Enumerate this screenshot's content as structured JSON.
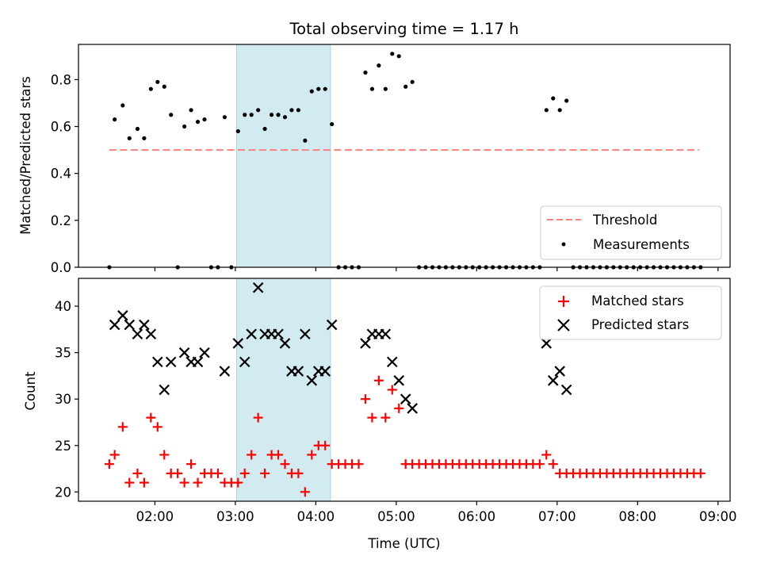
{
  "chart_data": [
    {
      "type": "scatter",
      "title": "Total observing time = 1.17 h",
      "xlabel": "",
      "ylabel": "Matched/Predicted stars",
      "ylim": [
        0,
        0.95
      ],
      "yticks": [
        "0.0",
        "0.2",
        "0.4",
        "0.6",
        "0.8"
      ],
      "shaded_span": {
        "start": "03:01",
        "end": "04:11",
        "color": "#a6d7e3"
      },
      "legend": {
        "placement": "lower-right"
      },
      "threshold": {
        "name": "Threshold",
        "y": 0.5,
        "x_start": "01:26",
        "x_end": "08:46",
        "color": "#ff7f7f"
      },
      "measurements": {
        "name": "Measurements",
        "color": "#000000",
        "points": [
          [
            "01:26",
            0.0
          ],
          [
            "01:30",
            0.63
          ],
          [
            "01:36",
            0.69
          ],
          [
            "01:41",
            0.55
          ],
          [
            "01:47",
            0.59
          ],
          [
            "01:52",
            0.55
          ],
          [
            "01:57",
            0.76
          ],
          [
            "02:02",
            0.79
          ],
          [
            "02:07",
            0.77
          ],
          [
            "02:12",
            0.65
          ],
          [
            "02:17",
            0.0
          ],
          [
            "02:22",
            0.6
          ],
          [
            "02:27",
            0.67
          ],
          [
            "02:32",
            0.62
          ],
          [
            "02:37",
            0.63
          ],
          [
            "02:42",
            0.0
          ],
          [
            "02:47",
            0.0
          ],
          [
            "02:52",
            0.64
          ],
          [
            "02:57",
            0.0
          ],
          [
            "03:02",
            0.58
          ],
          [
            "03:07",
            0.65
          ],
          [
            "03:12",
            0.65
          ],
          [
            "03:17",
            0.67
          ],
          [
            "03:22",
            0.59
          ],
          [
            "03:27",
            0.65
          ],
          [
            "03:32",
            0.65
          ],
          [
            "03:37",
            0.64
          ],
          [
            "03:42",
            0.67
          ],
          [
            "03:47",
            0.67
          ],
          [
            "03:52",
            0.54
          ],
          [
            "03:57",
            0.75
          ],
          [
            "04:02",
            0.76
          ],
          [
            "04:07",
            0.76
          ],
          [
            "04:12",
            0.61
          ],
          [
            "04:17",
            0.0
          ],
          [
            "04:22",
            0.0
          ],
          [
            "04:27",
            0.0
          ],
          [
            "04:32",
            0.0
          ],
          [
            "04:37",
            0.83
          ],
          [
            "04:42",
            0.76
          ],
          [
            "04:47",
            0.86
          ],
          [
            "04:52",
            0.76
          ],
          [
            "04:57",
            0.91
          ],
          [
            "05:02",
            0.9
          ],
          [
            "05:07",
            0.77
          ],
          [
            "05:12",
            0.79
          ],
          [
            "05:17",
            0.0
          ],
          [
            "05:22",
            0.0
          ],
          [
            "05:27",
            0.0
          ],
          [
            "05:32",
            0.0
          ],
          [
            "05:37",
            0.0
          ],
          [
            "05:42",
            0.0
          ],
          [
            "05:47",
            0.0
          ],
          [
            "05:52",
            0.0
          ],
          [
            "05:57",
            0.0
          ],
          [
            "06:02",
            0.0
          ],
          [
            "06:07",
            0.0
          ],
          [
            "06:12",
            0.0
          ],
          [
            "06:17",
            0.0
          ],
          [
            "06:22",
            0.0
          ],
          [
            "06:27",
            0.0
          ],
          [
            "06:32",
            0.0
          ],
          [
            "06:37",
            0.0
          ],
          [
            "06:42",
            0.0
          ],
          [
            "06:47",
            0.0
          ],
          [
            "06:52",
            0.67
          ],
          [
            "06:57",
            0.72
          ],
          [
            "07:02",
            0.67
          ],
          [
            "07:07",
            0.71
          ],
          [
            "07:12",
            0.0
          ],
          [
            "07:17",
            0.0
          ],
          [
            "07:22",
            0.0
          ],
          [
            "07:27",
            0.0
          ],
          [
            "07:32",
            0.0
          ],
          [
            "07:37",
            0.0
          ],
          [
            "07:42",
            0.0
          ],
          [
            "07:47",
            0.0
          ],
          [
            "07:52",
            0.0
          ],
          [
            "07:57",
            0.0
          ],
          [
            "08:02",
            0.0
          ],
          [
            "08:07",
            0.0
          ],
          [
            "08:12",
            0.0
          ],
          [
            "08:17",
            0.0
          ],
          [
            "08:22",
            0.0
          ],
          [
            "08:27",
            0.0
          ],
          [
            "08:32",
            0.0
          ],
          [
            "08:37",
            0.0
          ],
          [
            "08:42",
            0.0
          ],
          [
            "08:47",
            0.0
          ]
        ]
      }
    },
    {
      "type": "scatter",
      "title": "",
      "xlabel": "Time (UTC)",
      "ylabel": "Count",
      "ylim": [
        19,
        43
      ],
      "yticks": [
        "20",
        "25",
        "30",
        "35",
        "40"
      ],
      "xticks": [
        "02:00",
        "03:00",
        "04:00",
        "05:00",
        "06:00",
        "07:00",
        "08:00",
        "09:00"
      ],
      "xlim": [
        "01:03",
        "09:09"
      ],
      "shaded_span": {
        "start": "03:01",
        "end": "04:11",
        "color": "#a6d7e3"
      },
      "legend": {
        "placement": "top-right"
      },
      "series": [
        {
          "name": "Matched stars",
          "marker": "+",
          "color": "#ff0000",
          "points": [
            [
              "01:26",
              23
            ],
            [
              "01:30",
              24
            ],
            [
              "01:36",
              27
            ],
            [
              "01:41",
              21
            ],
            [
              "01:47",
              22
            ],
            [
              "01:52",
              21
            ],
            [
              "01:57",
              28
            ],
            [
              "02:02",
              27
            ],
            [
              "02:07",
              24
            ],
            [
              "02:12",
              22
            ],
            [
              "02:17",
              22
            ],
            [
              "02:22",
              21
            ],
            [
              "02:27",
              23
            ],
            [
              "02:32",
              21
            ],
            [
              "02:37",
              22
            ],
            [
              "02:42",
              22
            ],
            [
              "02:47",
              22
            ],
            [
              "02:52",
              21
            ],
            [
              "02:57",
              21
            ],
            [
              "03:02",
              21
            ],
            [
              "03:07",
              22
            ],
            [
              "03:12",
              24
            ],
            [
              "03:17",
              28
            ],
            [
              "03:22",
              22
            ],
            [
              "03:27",
              24
            ],
            [
              "03:32",
              24
            ],
            [
              "03:37",
              23
            ],
            [
              "03:42",
              22
            ],
            [
              "03:47",
              22
            ],
            [
              "03:52",
              20
            ],
            [
              "03:57",
              24
            ],
            [
              "04:02",
              25
            ],
            [
              "04:07",
              25
            ],
            [
              "04:12",
              23
            ],
            [
              "04:17",
              23
            ],
            [
              "04:22",
              23
            ],
            [
              "04:27",
              23
            ],
            [
              "04:32",
              23
            ],
            [
              "04:37",
              30
            ],
            [
              "04:42",
              28
            ],
            [
              "04:47",
              32
            ],
            [
              "04:52",
              28
            ],
            [
              "04:57",
              31
            ],
            [
              "05:02",
              29
            ],
            [
              "05:07",
              23
            ],
            [
              "05:12",
              23
            ],
            [
              "05:17",
              23
            ],
            [
              "05:22",
              23
            ],
            [
              "05:27",
              23
            ],
            [
              "05:32",
              23
            ],
            [
              "05:37",
              23
            ],
            [
              "05:42",
              23
            ],
            [
              "05:47",
              23
            ],
            [
              "05:52",
              23
            ],
            [
              "05:57",
              23
            ],
            [
              "06:02",
              23
            ],
            [
              "06:07",
              23
            ],
            [
              "06:12",
              23
            ],
            [
              "06:17",
              23
            ],
            [
              "06:22",
              23
            ],
            [
              "06:27",
              23
            ],
            [
              "06:32",
              23
            ],
            [
              "06:37",
              23
            ],
            [
              "06:42",
              23
            ],
            [
              "06:47",
              23
            ],
            [
              "06:52",
              24
            ],
            [
              "06:57",
              23
            ],
            [
              "07:02",
              22
            ],
            [
              "07:07",
              22
            ],
            [
              "07:12",
              22
            ],
            [
              "07:17",
              22
            ],
            [
              "07:22",
              22
            ],
            [
              "07:27",
              22
            ],
            [
              "07:32",
              22
            ],
            [
              "07:37",
              22
            ],
            [
              "07:42",
              22
            ],
            [
              "07:47",
              22
            ],
            [
              "07:52",
              22
            ],
            [
              "07:57",
              22
            ],
            [
              "08:02",
              22
            ],
            [
              "08:07",
              22
            ],
            [
              "08:12",
              22
            ],
            [
              "08:17",
              22
            ],
            [
              "08:22",
              22
            ],
            [
              "08:27",
              22
            ],
            [
              "08:32",
              22
            ],
            [
              "08:37",
              22
            ],
            [
              "08:42",
              22
            ],
            [
              "08:47",
              22
            ]
          ]
        },
        {
          "name": "Predicted stars",
          "marker": "x",
          "color": "#000000",
          "points": [
            [
              "01:30",
              38
            ],
            [
              "01:36",
              39
            ],
            [
              "01:41",
              38
            ],
            [
              "01:47",
              37
            ],
            [
              "01:52",
              38
            ],
            [
              "01:57",
              37
            ],
            [
              "02:02",
              34
            ],
            [
              "02:07",
              31
            ],
            [
              "02:12",
              34
            ],
            [
              "02:22",
              35
            ],
            [
              "02:27",
              34
            ],
            [
              "02:32",
              34
            ],
            [
              "02:37",
              35
            ],
            [
              "02:52",
              33
            ],
            [
              "03:02",
              36
            ],
            [
              "03:07",
              34
            ],
            [
              "03:12",
              37
            ],
            [
              "03:17",
              42
            ],
            [
              "03:22",
              37
            ],
            [
              "03:27",
              37
            ],
            [
              "03:32",
              37
            ],
            [
              "03:37",
              36
            ],
            [
              "03:42",
              33
            ],
            [
              "03:47",
              33
            ],
            [
              "03:52",
              37
            ],
            [
              "03:57",
              32
            ],
            [
              "04:02",
              33
            ],
            [
              "04:07",
              33
            ],
            [
              "04:12",
              38
            ],
            [
              "04:37",
              36
            ],
            [
              "04:42",
              37
            ],
            [
              "04:47",
              37
            ],
            [
              "04:52",
              37
            ],
            [
              "04:57",
              34
            ],
            [
              "05:02",
              32
            ],
            [
              "05:07",
              30
            ],
            [
              "05:12",
              29
            ],
            [
              "06:52",
              36
            ],
            [
              "06:57",
              32
            ],
            [
              "07:02",
              33
            ],
            [
              "07:07",
              31
            ]
          ]
        }
      ]
    }
  ]
}
